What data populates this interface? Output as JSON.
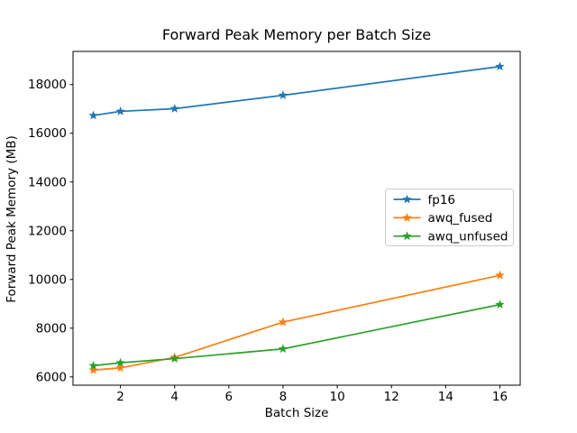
{
  "chart_data": {
    "type": "line",
    "title": "Forward Peak Memory per Batch Size",
    "xlabel": "Batch Size",
    "ylabel": "Forward Peak Memory (MB)",
    "x": [
      1,
      2,
      4,
      8,
      16
    ],
    "series": [
      {
        "name": "fp16",
        "color": "#1f77b4",
        "values": [
          16730,
          16900,
          17010,
          17560,
          18740
        ]
      },
      {
        "name": "awq_fused",
        "color": "#ff7f0e",
        "values": [
          6280,
          6370,
          6800,
          8250,
          10170
        ]
      },
      {
        "name": "awq_unfused",
        "color": "#2ca02c",
        "values": [
          6460,
          6580,
          6750,
          7150,
          8970
        ]
      }
    ],
    "marker": "star",
    "xlim": [
      0.25,
      16.75
    ],
    "ylim": [
      5660,
      19360
    ],
    "xticks": [
      2,
      4,
      6,
      8,
      10,
      12,
      14,
      16
    ],
    "yticks": [
      6000,
      8000,
      10000,
      12000,
      14000,
      16000,
      18000
    ],
    "grid": false,
    "legend": {
      "position": "center right",
      "entries": [
        "fp16",
        "awq_fused",
        "awq_unfused"
      ],
      "border_color": "#cccccc",
      "background": "#ffffff"
    },
    "axis_color": "#000000"
  }
}
